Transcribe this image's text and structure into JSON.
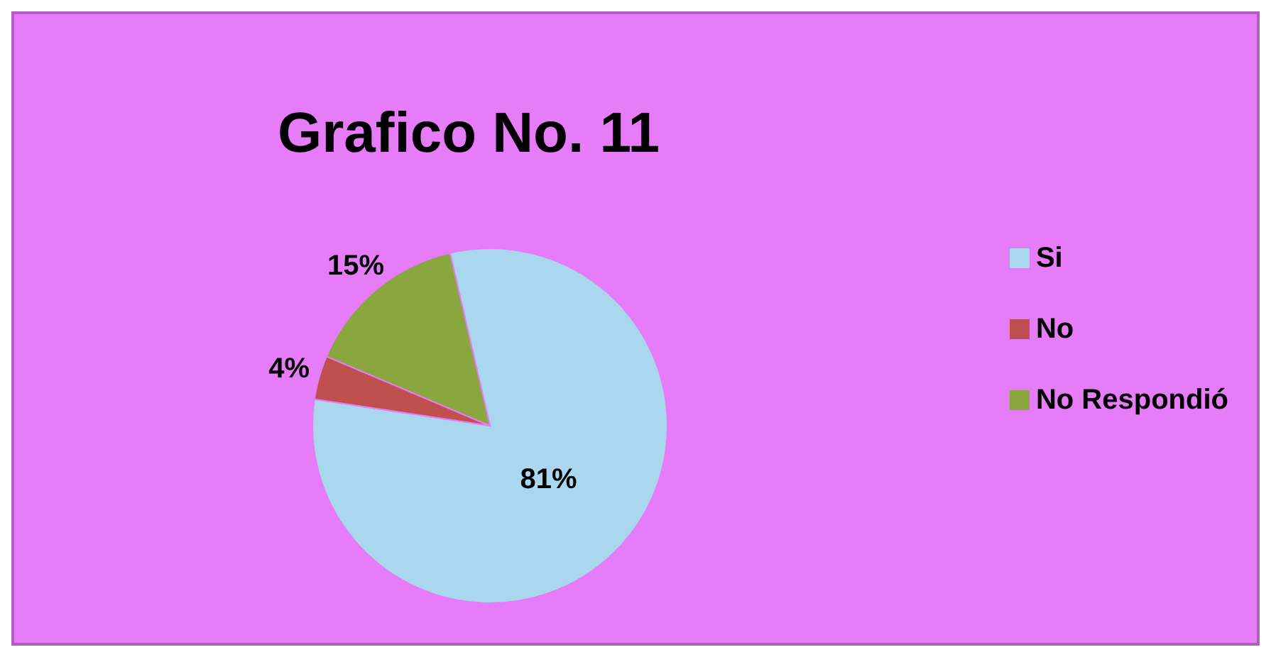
{
  "chart_data": {
    "type": "pie",
    "title": "Grafico No. 11",
    "categories": [
      "Si",
      "No",
      "No Respondió"
    ],
    "values": [
      81,
      4,
      15
    ],
    "colors": [
      "#a9d7ee",
      "#c0504d",
      "#8aa63f"
    ],
    "value_labels": [
      "81%",
      "4%",
      "15%"
    ],
    "legend": "right"
  }
}
